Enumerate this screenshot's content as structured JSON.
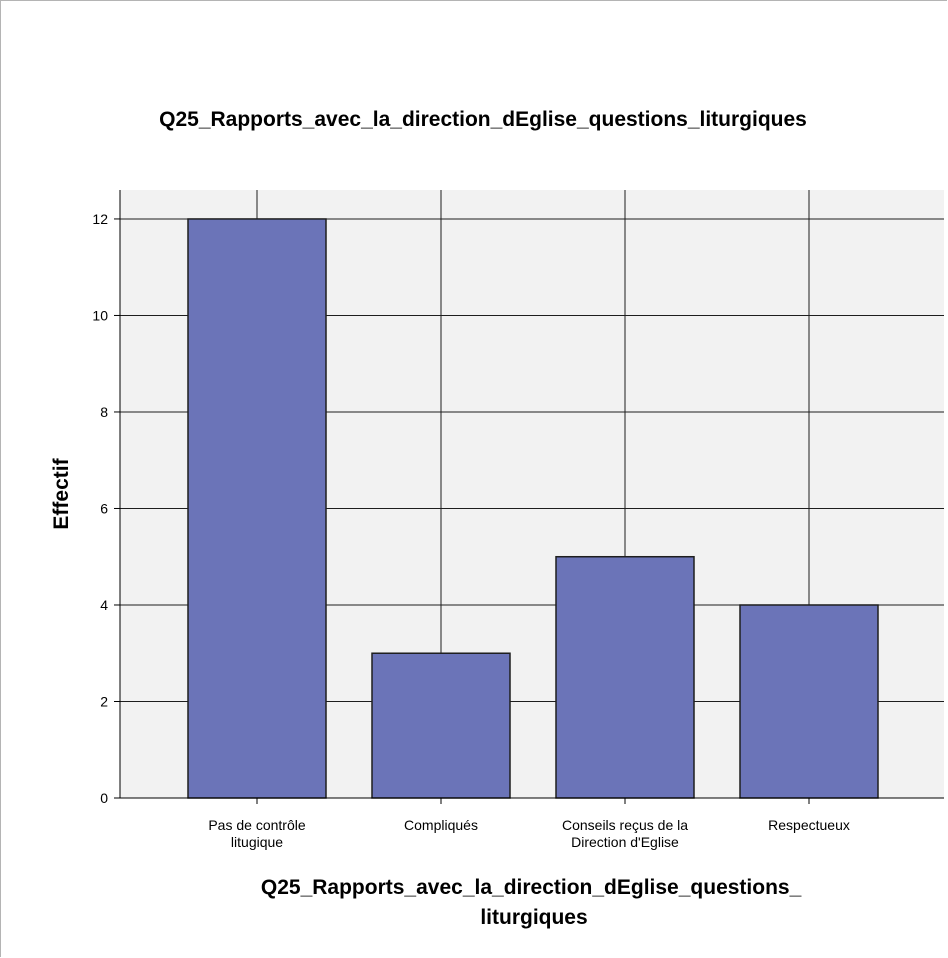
{
  "chart_data": {
    "type": "bar",
    "title": "Q25_Rapports_avec_la_direction_dEglise_questions_liturgiques",
    "xlabel_lines": [
      "Q25_Rapports_avec_la_direction_dEglise_questions_",
      "liturgiques"
    ],
    "ylabel": "Effectif",
    "categories": [
      [
        "Pas de contrôle",
        "litugique"
      ],
      [
        "Compliqués"
      ],
      [
        "Conseils reçus de la",
        "Direction d'Eglise"
      ],
      [
        "Respectueux"
      ]
    ],
    "values": [
      12,
      3,
      5,
      4
    ],
    "ylim": [
      0,
      12.6
    ],
    "yticks": [
      0,
      2,
      4,
      6,
      8,
      10,
      12
    ],
    "grid": true,
    "colors": {
      "bar": "#6b74b8",
      "bar_edge": "#1e1e1e",
      "plot_bg": "#f2f2f2",
      "grid": "#1e1e1e"
    }
  }
}
